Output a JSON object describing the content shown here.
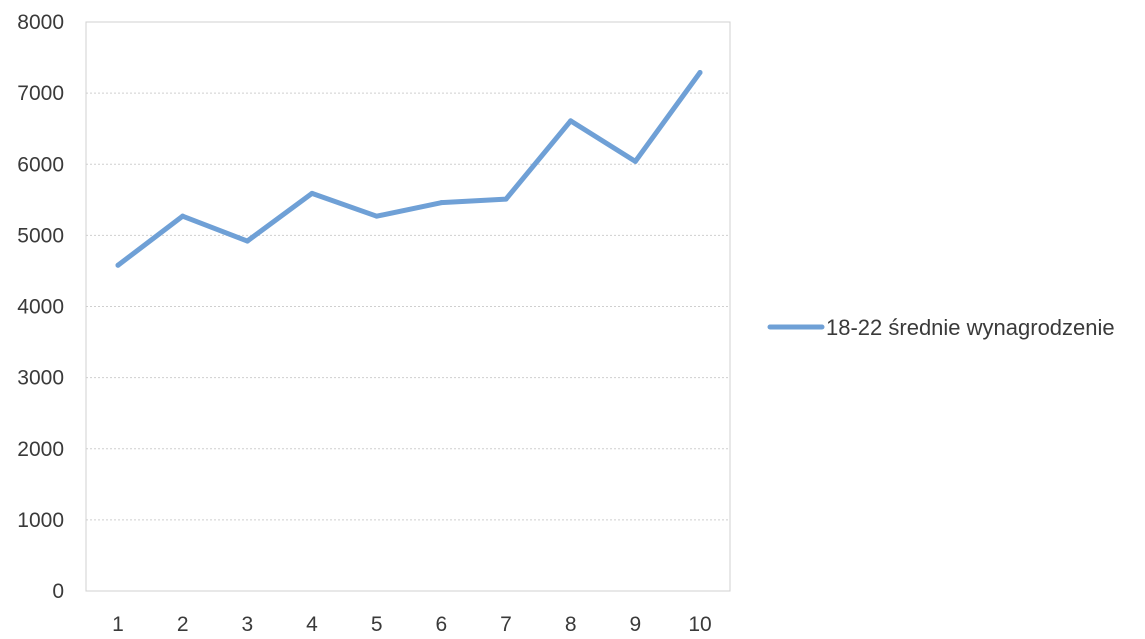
{
  "chart_data": {
    "type": "line",
    "title": "",
    "xlabel": "",
    "ylabel": "",
    "categories": [
      "1",
      "2",
      "3",
      "4",
      "5",
      "6",
      "7",
      "8",
      "9",
      "10"
    ],
    "ylim": [
      0,
      8000
    ],
    "yticks": [
      "0",
      "1000",
      "2000",
      "3000",
      "4000",
      "5000",
      "6000",
      "7000",
      "8000"
    ],
    "grid": true,
    "legend_position": "right",
    "series": [
      {
        "name": "18-22 średnie wynagrodzenie",
        "color": "#6fa0d6",
        "values": [
          4580,
          5270,
          4920,
          5590,
          5270,
          5460,
          5510,
          6610,
          6040,
          7290
        ]
      }
    ]
  }
}
